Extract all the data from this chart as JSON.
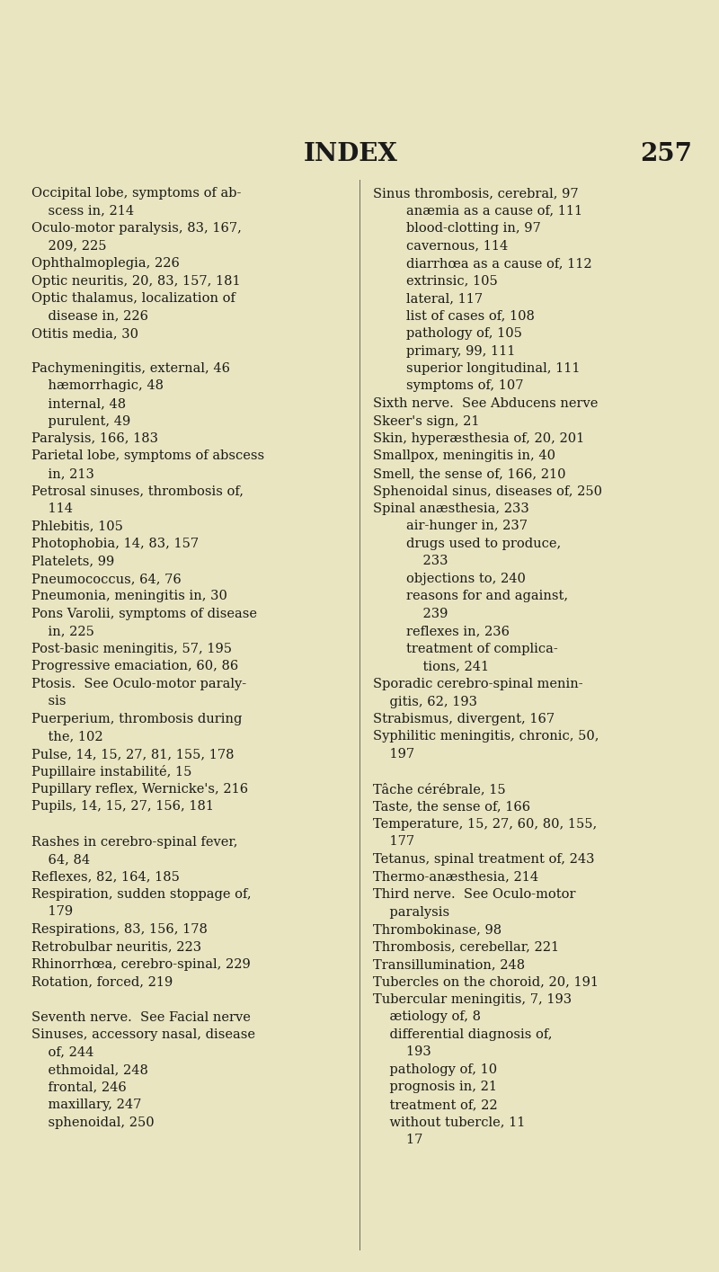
{
  "bg_color": "#e8e5c0",
  "text_color": "#1a1a1a",
  "title": "INDEX",
  "page_num": "257",
  "title_fontsize": 20,
  "body_fontsize": 10.5,
  "left_col": [
    "Occipital lobe, symptoms of ab-",
    "    scess in, 214",
    "Oculo-motor paralysis, 83, 167,",
    "    209, 225",
    "Ophthalmoplegia, 226",
    "Optic neuritis, 20, 83, 157, 181",
    "Optic thalamus, localization of",
    "    disease in, 226",
    "Otitis media, 30",
    "",
    "Pachymeningitis, external, 46",
    "    hæmorrhagic, 48",
    "    internal, 48",
    "    purulent, 49",
    "Paralysis, 166, 183",
    "Parietal lobe, symptoms of abscess",
    "    in, 213",
    "Petrosal sinuses, thrombosis of,",
    "    114",
    "Phlebitis, 105",
    "Photophobia, 14, 83, 157",
    "Platelets, 99",
    "Pneumococcus, 64, 76",
    "Pneumonia, meningitis in, 30",
    "Pons Varolii, symptoms of disease",
    "    in, 225",
    "Post-basic meningitis, 57, 195",
    "Progressive emaciation, 60, 86",
    "Ptosis.  See Oculo-motor paraly-",
    "    sis",
    "Puerperium, thrombosis during",
    "    the, 102",
    "Pulse, 14, 15, 27, 81, 155, 178",
    "Pupillaire instabilité, 15",
    "Pupillary reflex, Wernicke's, 216",
    "Pupils, 14, 15, 27, 156, 181",
    "",
    "Rashes in cerebro-spinal fever,",
    "    64, 84",
    "Reflexes, 82, 164, 185",
    "Respiration, sudden stoppage of,",
    "    179",
    "Respirations, 83, 156, 178",
    "Retrobulbar neuritis, 223",
    "Rhinorrhœa, cerebro-spinal, 229",
    "Rotation, forced, 219",
    "",
    "Seventh nerve.  See Facial nerve",
    "Sinuses, accessory nasal, disease",
    "    of, 244",
    "    ethmoidal, 248",
    "    frontal, 246",
    "    maxillary, 247",
    "    sphenoidal, 250"
  ],
  "right_col": [
    "Sinus thrombosis, cerebral, 97",
    "        anæmia as a cause of, 111",
    "        blood-clotting in, 97",
    "        cavernous, 114",
    "        diarrhœa as a cause of, 112",
    "        extrinsic, 105",
    "        lateral, 117",
    "        list of cases of, 108",
    "        pathology of, 105",
    "        primary, 99, 111",
    "        superior longitudinal, 111",
    "        symptoms of, 107",
    "Sixth nerve.  See Abducens nerve",
    "Skeer's sign, 21",
    "Skin, hyperæsthesia of, 20, 201",
    "Smallpox, meningitis in, 40",
    "Smell, the sense of, 166, 210",
    "Sphenoidal sinus, diseases of, 250",
    "Spinal anæsthesia, 233",
    "        air-hunger in, 237",
    "        drugs used to produce,",
    "            233",
    "        objections to, 240",
    "        reasons for and against,",
    "            239",
    "        reflexes in, 236",
    "        treatment of complica-",
    "            tions, 241",
    "Sporadic cerebro-spinal menin-",
    "    gitis, 62, 193",
    "Strabismus, divergent, 167",
    "Syphilitic meningitis, chronic, 50,",
    "    197",
    "",
    "Tâche cérébrale, 15",
    "Taste, the sense of, 166",
    "Temperature, 15, 27, 60, 80, 155,",
    "    177",
    "Tetanus, spinal treatment of, 243",
    "Thermo-anæsthesia, 214",
    "Third nerve.  See Oculo-motor",
    "    paralysis",
    "Thrombokinase, 98",
    "Thrombosis, cerebellar, 221",
    "Transillumination, 248",
    "Tubercles on the choroid, 20, 191",
    "Tubercular meningitis, 7, 193",
    "    ætiology of, 8",
    "    differential diagnosis of,",
    "        193",
    "    pathology of, 10",
    "    prognosis in, 21",
    "    treatment of, 22",
    "    without tubercle, 11",
    "        17"
  ]
}
